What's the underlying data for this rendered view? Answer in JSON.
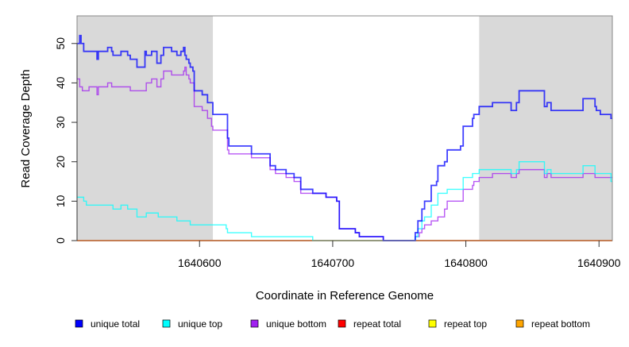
{
  "chart_data": {
    "type": "line",
    "title": "",
    "xlabel": "Coordinate in Reference Genome",
    "ylabel": "Read Coverage Depth",
    "xlim": [
      1640508,
      1640910
    ],
    "ylim": [
      0,
      57
    ],
    "xticks": [
      1640600,
      1640700,
      1640800,
      1640900
    ],
    "xtick_labels": [
      "1640600",
      "1640700",
      "1640800",
      "1640900"
    ],
    "yticks": [
      0,
      10,
      20,
      30,
      40,
      50
    ],
    "ytick_labels": [
      "0",
      "10",
      "20",
      "30",
      "40",
      "50"
    ],
    "shaded_regions": [
      [
        1640508,
        1640610
      ],
      [
        1640810,
        1640910
      ]
    ],
    "grid": false,
    "legend_position": "bottom",
    "step": true,
    "series": [
      {
        "name": "unique total",
        "color": "#0000ff",
        "points": [
          [
            1640508,
            50
          ],
          [
            1640510,
            52
          ],
          [
            1640511,
            50
          ],
          [
            1640513,
            48
          ],
          [
            1640523,
            46
          ],
          [
            1640524,
            48
          ],
          [
            1640531,
            49
          ],
          [
            1640534,
            48
          ],
          [
            1640535,
            47
          ],
          [
            1640541,
            48
          ],
          [
            1640546,
            47
          ],
          [
            1640548,
            46
          ],
          [
            1640553,
            44
          ],
          [
            1640559,
            48
          ],
          [
            1640560,
            47
          ],
          [
            1640564,
            48
          ],
          [
            1640568,
            45
          ],
          [
            1640571,
            47
          ],
          [
            1640573,
            49
          ],
          [
            1640579,
            48
          ],
          [
            1640583,
            47
          ],
          [
            1640586,
            48
          ],
          [
            1640588,
            49
          ],
          [
            1640589,
            47
          ],
          [
            1640590,
            46
          ],
          [
            1640592,
            45
          ],
          [
            1640593,
            44
          ],
          [
            1640595,
            43
          ],
          [
            1640596,
            38
          ],
          [
            1640602,
            37
          ],
          [
            1640606,
            35
          ],
          [
            1640610,
            32
          ],
          [
            1640621,
            26
          ],
          [
            1640622,
            24
          ],
          [
            1640639,
            22
          ],
          [
            1640653,
            19
          ],
          [
            1640657,
            18
          ],
          [
            1640665,
            17
          ],
          [
            1640671,
            16
          ],
          [
            1640676,
            13
          ],
          [
            1640685,
            12
          ],
          [
            1640695,
            11
          ],
          [
            1640703,
            10
          ],
          [
            1640705,
            3
          ],
          [
            1640717,
            2
          ],
          [
            1640720,
            1
          ],
          [
            1640738,
            0
          ],
          [
            1640762,
            2
          ],
          [
            1640764,
            5
          ],
          [
            1640767,
            8
          ],
          [
            1640769,
            10
          ],
          [
            1640774,
            14
          ],
          [
            1640778,
            15
          ],
          [
            1640779,
            19
          ],
          [
            1640784,
            20
          ],
          [
            1640786,
            23
          ],
          [
            1640796,
            24
          ],
          [
            1640798,
            29
          ],
          [
            1640805,
            31
          ],
          [
            1640806,
            32
          ],
          [
            1640810,
            34
          ],
          [
            1640820,
            35
          ],
          [
            1640834,
            33
          ],
          [
            1640838,
            35
          ],
          [
            1640840,
            38
          ],
          [
            1640859,
            34
          ],
          [
            1640861,
            35
          ],
          [
            1640864,
            33
          ],
          [
            1640888,
            36
          ],
          [
            1640897,
            34
          ],
          [
            1640898,
            33
          ],
          [
            1640901,
            32
          ],
          [
            1640909,
            31
          ]
        ]
      },
      {
        "name": "unique top",
        "color": "#00ffff",
        "points": [
          [
            1640508,
            11
          ],
          [
            1640513,
            10
          ],
          [
            1640515,
            9
          ],
          [
            1640535,
            8
          ],
          [
            1640541,
            9
          ],
          [
            1640546,
            8
          ],
          [
            1640553,
            6
          ],
          [
            1640560,
            7
          ],
          [
            1640569,
            6
          ],
          [
            1640583,
            5
          ],
          [
            1640593,
            4
          ],
          [
            1640620,
            3
          ],
          [
            1640621,
            2
          ],
          [
            1640639,
            1
          ],
          [
            1640685,
            0
          ],
          [
            1640762,
            1
          ],
          [
            1640764,
            3
          ],
          [
            1640767,
            5
          ],
          [
            1640769,
            6
          ],
          [
            1640774,
            9
          ],
          [
            1640779,
            12
          ],
          [
            1640786,
            13
          ],
          [
            1640798,
            16
          ],
          [
            1640805,
            17
          ],
          [
            1640810,
            18
          ],
          [
            1640834,
            17
          ],
          [
            1640838,
            18
          ],
          [
            1640840,
            20
          ],
          [
            1640859,
            17
          ],
          [
            1640861,
            18
          ],
          [
            1640864,
            17
          ],
          [
            1640888,
            19
          ],
          [
            1640897,
            17
          ],
          [
            1640909,
            15
          ]
        ]
      },
      {
        "name": "unique bottom",
        "color": "#a020f0",
        "points": [
          [
            1640508,
            41
          ],
          [
            1640510,
            39
          ],
          [
            1640512,
            38
          ],
          [
            1640517,
            39
          ],
          [
            1640523,
            37
          ],
          [
            1640524,
            39
          ],
          [
            1640531,
            40
          ],
          [
            1640534,
            39
          ],
          [
            1640548,
            38
          ],
          [
            1640560,
            40
          ],
          [
            1640564,
            41
          ],
          [
            1640568,
            39
          ],
          [
            1640571,
            41
          ],
          [
            1640573,
            43
          ],
          [
            1640579,
            42
          ],
          [
            1640588,
            43
          ],
          [
            1640589,
            44
          ],
          [
            1640590,
            42
          ],
          [
            1640592,
            41
          ],
          [
            1640593,
            40
          ],
          [
            1640596,
            34
          ],
          [
            1640602,
            33
          ],
          [
            1640606,
            31
          ],
          [
            1640609,
            29
          ],
          [
            1640610,
            28
          ],
          [
            1640621,
            23
          ],
          [
            1640622,
            22
          ],
          [
            1640639,
            21
          ],
          [
            1640653,
            18
          ],
          [
            1640657,
            17
          ],
          [
            1640665,
            16
          ],
          [
            1640671,
            15
          ],
          [
            1640676,
            12
          ],
          [
            1640695,
            11
          ],
          [
            1640703,
            10
          ],
          [
            1640705,
            3
          ],
          [
            1640717,
            2
          ],
          [
            1640720,
            1
          ],
          [
            1640738,
            0
          ],
          [
            1640762,
            1
          ],
          [
            1640765,
            2
          ],
          [
            1640767,
            3
          ],
          [
            1640769,
            4
          ],
          [
            1640774,
            5
          ],
          [
            1640779,
            6
          ],
          [
            1640784,
            8
          ],
          [
            1640786,
            10
          ],
          [
            1640798,
            13
          ],
          [
            1640805,
            14
          ],
          [
            1640806,
            15
          ],
          [
            1640810,
            16
          ],
          [
            1640820,
            17
          ],
          [
            1640834,
            16
          ],
          [
            1640838,
            17
          ],
          [
            1640840,
            18
          ],
          [
            1640859,
            16
          ],
          [
            1640861,
            17
          ],
          [
            1640864,
            16
          ],
          [
            1640888,
            17
          ],
          [
            1640897,
            16
          ]
        ]
      },
      {
        "name": "repeat total",
        "color": "#ff0000",
        "points": [
          [
            1640508,
            0
          ]
        ]
      },
      {
        "name": "repeat top",
        "color": "#ffff00",
        "points": [
          [
            1640508,
            0
          ]
        ]
      },
      {
        "name": "repeat bottom",
        "color": "#ffa500",
        "points": [
          [
            1640508,
            0
          ]
        ]
      }
    ]
  }
}
